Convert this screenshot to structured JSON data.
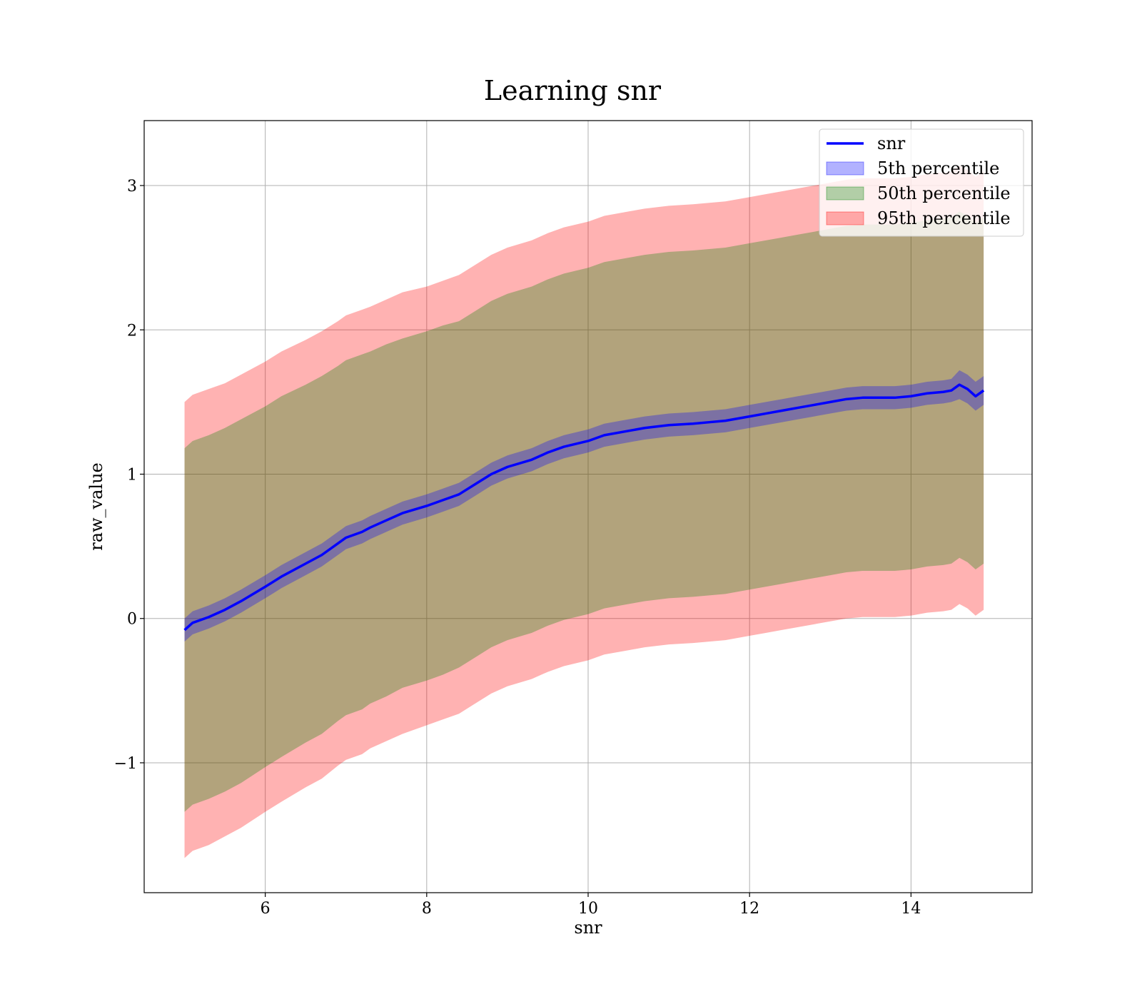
{
  "chart_data": {
    "type": "line",
    "title": "Learning snr",
    "xlabel": "snr",
    "ylabel": "raw_value",
    "xlim": [
      4.5,
      15.5
    ],
    "ylim": [
      -1.9,
      3.45
    ],
    "xticks": [
      6,
      8,
      10,
      12,
      14
    ],
    "yticks": [
      -1,
      0,
      1,
      2,
      3
    ],
    "xtick_labels": [
      "6",
      "8",
      "10",
      "12",
      "14"
    ],
    "ytick_labels": [
      "−1",
      "0",
      "1",
      "2",
      "3"
    ],
    "grid": true,
    "legend_position": "top-right",
    "x": [
      5.0,
      5.1,
      5.3,
      5.5,
      5.7,
      6.0,
      6.2,
      6.5,
      6.7,
      6.9,
      7.0,
      7.2,
      7.3,
      7.5,
      7.7,
      8.0,
      8.2,
      8.4,
      8.6,
      8.8,
      9.0,
      9.3,
      9.5,
      9.7,
      10.0,
      10.2,
      10.5,
      10.7,
      11.0,
      11.3,
      11.5,
      11.7,
      12.0,
      12.2,
      12.4,
      12.6,
      12.8,
      13.0,
      13.2,
      13.4,
      13.6,
      13.8,
      14.0,
      14.2,
      14.4,
      14.5,
      14.6,
      14.7,
      14.8,
      14.9
    ],
    "series": [
      {
        "name": "snr",
        "kind": "line",
        "color": "#0000ff",
        "values": [
          -0.08,
          -0.03,
          0.01,
          0.06,
          0.12,
          0.22,
          0.29,
          0.38,
          0.44,
          0.52,
          0.56,
          0.6,
          0.63,
          0.68,
          0.73,
          0.78,
          0.82,
          0.86,
          0.93,
          1.0,
          1.05,
          1.1,
          1.15,
          1.19,
          1.23,
          1.27,
          1.3,
          1.32,
          1.34,
          1.35,
          1.36,
          1.37,
          1.4,
          1.42,
          1.44,
          1.46,
          1.48,
          1.5,
          1.52,
          1.53,
          1.53,
          1.53,
          1.54,
          1.56,
          1.57,
          1.58,
          1.62,
          1.59,
          1.54,
          1.58
        ]
      },
      {
        "name": "5th percentile",
        "kind": "band",
        "color": "#0000ff",
        "opacity": 0.3,
        "half_width": [
          0.08,
          0.08,
          0.08,
          0.08,
          0.08,
          0.08,
          0.08,
          0.08,
          0.08,
          0.08,
          0.08,
          0.08,
          0.08,
          0.08,
          0.08,
          0.08,
          0.08,
          0.08,
          0.08,
          0.08,
          0.08,
          0.08,
          0.08,
          0.08,
          0.08,
          0.08,
          0.08,
          0.08,
          0.08,
          0.08,
          0.08,
          0.08,
          0.08,
          0.08,
          0.08,
          0.08,
          0.08,
          0.08,
          0.08,
          0.08,
          0.08,
          0.08,
          0.08,
          0.08,
          0.08,
          0.08,
          0.1,
          0.1,
          0.1,
          0.1
        ]
      },
      {
        "name": "50th percentile",
        "kind": "band",
        "color": "#008000",
        "opacity": 0.3,
        "half_width": [
          1.26,
          1.26,
          1.26,
          1.26,
          1.26,
          1.25,
          1.25,
          1.24,
          1.24,
          1.23,
          1.23,
          1.23,
          1.22,
          1.22,
          1.21,
          1.21,
          1.21,
          1.2,
          1.2,
          1.2,
          1.2,
          1.2,
          1.2,
          1.2,
          1.2,
          1.2,
          1.2,
          1.2,
          1.2,
          1.2,
          1.2,
          1.2,
          1.2,
          1.2,
          1.2,
          1.2,
          1.2,
          1.2,
          1.2,
          1.2,
          1.2,
          1.2,
          1.2,
          1.2,
          1.2,
          1.2,
          1.2,
          1.2,
          1.2,
          1.2
        ]
      },
      {
        "name": "95th percentile",
        "kind": "band",
        "color": "#ff0000",
        "opacity": 0.3,
        "half_width": [
          1.58,
          1.58,
          1.58,
          1.57,
          1.57,
          1.56,
          1.56,
          1.55,
          1.55,
          1.54,
          1.54,
          1.54,
          1.53,
          1.53,
          1.53,
          1.52,
          1.52,
          1.52,
          1.52,
          1.52,
          1.52,
          1.52,
          1.52,
          1.52,
          1.52,
          1.52,
          1.52,
          1.52,
          1.52,
          1.52,
          1.52,
          1.52,
          1.52,
          1.52,
          1.52,
          1.52,
          1.52,
          1.52,
          1.52,
          1.52,
          1.52,
          1.52,
          1.52,
          1.52,
          1.52,
          1.52,
          1.52,
          1.52,
          1.52,
          1.52
        ]
      }
    ]
  }
}
